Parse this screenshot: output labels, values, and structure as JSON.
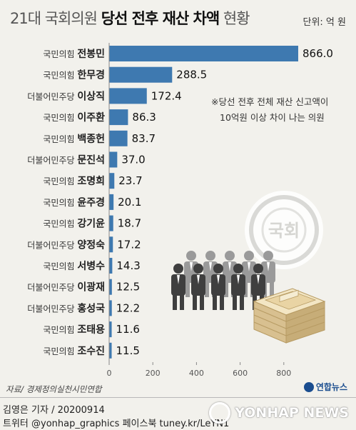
{
  "header": {
    "title_part1": "21대 국회의원",
    "title_part2": "당선 전후 재산 차액",
    "title_part3": "현황",
    "unit": "단위: 억 원"
  },
  "note": {
    "line1": "※당선 전후 전체 재산 신고액이",
    "line2": "10억원 이상 차이 나는 의원"
  },
  "illustration": {
    "seal_text": "국회"
  },
  "footer": {
    "source": "자료/ 경제정의실천시민연합",
    "brand": "연합뉴스",
    "credit_line1": "김영은 기자 / 20200914",
    "credit_line2": "트위터 @yonhap_graphics  페이스북 tuney.kr/LeYN1",
    "watermark": "YONHAP NEWS"
  },
  "colors": {
    "bar": "#3e79b0",
    "text": "#222222",
    "background": "#f2f1ec"
  },
  "chart_data": {
    "type": "bar",
    "orientation": "horizontal",
    "categories": [
      {
        "party": "국민의힘",
        "name": "전봉민"
      },
      {
        "party": "국민의힘",
        "name": "한무경"
      },
      {
        "party": "더불어민주당",
        "name": "이상직"
      },
      {
        "party": "국민의힘",
        "name": "이주환"
      },
      {
        "party": "국민의힘",
        "name": "백종헌"
      },
      {
        "party": "더불어민주당",
        "name": "문진석"
      },
      {
        "party": "국민의힘",
        "name": "조명희"
      },
      {
        "party": "국민의힘",
        "name": "윤주경"
      },
      {
        "party": "국민의힘",
        "name": "강기윤"
      },
      {
        "party": "더불어민주당",
        "name": "양정숙"
      },
      {
        "party": "국민의힘",
        "name": "서병수"
      },
      {
        "party": "더불어민주당",
        "name": "이광재"
      },
      {
        "party": "더불어민주당",
        "name": "홍성국"
      },
      {
        "party": "국민의힘",
        "name": "조태용"
      },
      {
        "party": "국민의힘",
        "name": "조수진"
      }
    ],
    "values": [
      866.0,
      288.5,
      172.4,
      86.3,
      83.7,
      37.0,
      23.7,
      20.1,
      18.7,
      17.2,
      14.3,
      12.5,
      12.2,
      11.6,
      11.5
    ],
    "value_labels": [
      "866.0",
      "288.5",
      "172.4",
      "86.3",
      "83.7",
      "37.0",
      "23.7",
      "20.1",
      "18.7",
      "17.2",
      "14.3",
      "12.5",
      "12.2",
      "11.6",
      "11.5"
    ],
    "xticks": [
      "0",
      "200",
      "400",
      "600",
      "800"
    ],
    "xtick_values": [
      0,
      200,
      400,
      600,
      800
    ],
    "xlim": [
      0,
      900
    ],
    "grid": false,
    "legend": "none"
  }
}
